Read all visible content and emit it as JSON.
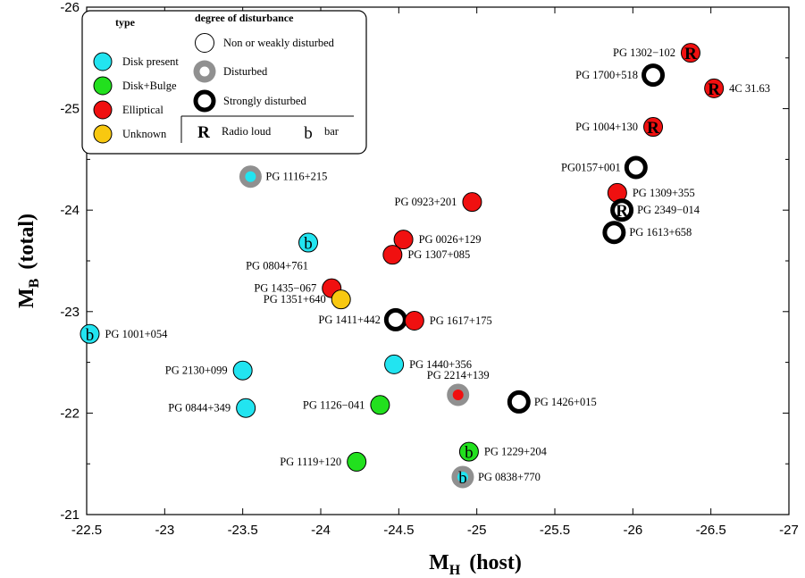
{
  "chart_data": {
    "type": "scatter",
    "xlabel": "M",
    "xlabel_sub": "H",
    "xlabel_tail": "(host)",
    "ylabel": "M",
    "ylabel_sub": "B",
    "ylabel_tail": "(total)",
    "xlim": [
      -22.5,
      -27
    ],
    "ylim": [
      -21,
      -26
    ],
    "x_ticks": [
      -22.5,
      -23,
      -23.5,
      -24,
      -24.5,
      -25,
      -25.5,
      -26,
      -26.5,
      -27
    ],
    "x_tick_labels": [
      "-22.5",
      "-23",
      "-23.5",
      "-24",
      "-24.5",
      "-25",
      "-25.5",
      "-26",
      "-26.5",
      "-27"
    ],
    "y_ticks": [
      -21,
      -22,
      -23,
      -24,
      -25,
      -26
    ],
    "y_tick_labels": [
      "-21",
      "-22",
      "-23",
      "-24",
      "-25",
      "-26"
    ],
    "grid": false,
    "colors": {
      "Disk present": "#22e4f0",
      "Disk+Bulge": "#22e01e",
      "Elliptical": "#f01010",
      "Unknown": "#f8c810",
      "Disturbed": "#909090",
      "Strongly disturbed": "#000000"
    },
    "legend": {
      "position": "top-left",
      "type_title": "type",
      "type_items": [
        "Disk present",
        "Disk+Bulge",
        "Elliptical",
        "Unknown"
      ],
      "disturbance_title": "degree of disturbance",
      "disturbance_items": [
        "Non or weakly disturbed",
        "Disturbed",
        "Strongly disturbed"
      ],
      "radio_symbol": "R",
      "radio_label": "Radio loud",
      "bar_symbol": "b",
      "bar_label": "bar"
    },
    "points": [
      {
        "name": "PG 1302−102",
        "x": -26.37,
        "y": -25.55,
        "type": "Elliptical",
        "disturbance": "none",
        "radio": true,
        "bar": false,
        "label_side": "left"
      },
      {
        "name": "PG 1700+518",
        "x": -26.13,
        "y": -25.33,
        "type": "Unknown",
        "disturbance": "strong",
        "radio": false,
        "bar": false,
        "label_side": "left"
      },
      {
        "name": "4C 31.63",
        "x": -26.52,
        "y": -25.2,
        "type": "Elliptical",
        "disturbance": "none",
        "radio": true,
        "bar": false,
        "label_side": "right"
      },
      {
        "name": "PG 1004+130",
        "x": -26.13,
        "y": -24.82,
        "type": "Elliptical",
        "disturbance": "none",
        "radio": true,
        "bar": false,
        "label_side": "left"
      },
      {
        "name": "PG0157+001",
        "x": -26.02,
        "y": -24.42,
        "type": "Unknown",
        "disturbance": "strong",
        "radio": false,
        "bar": false,
        "label_side": "left"
      },
      {
        "name": "PG 1309+355",
        "x": -25.9,
        "y": -24.17,
        "type": "Elliptical",
        "disturbance": "none",
        "radio": false,
        "bar": false,
        "label_side": "right"
      },
      {
        "name": "PG 2349−014",
        "x": -25.93,
        "y": -24.0,
        "type": "Unknown",
        "disturbance": "strong",
        "radio": true,
        "bar": false,
        "label_side": "right"
      },
      {
        "name": "PG 1613+658",
        "x": -25.88,
        "y": -23.78,
        "type": "Unknown",
        "disturbance": "strong",
        "radio": false,
        "bar": false,
        "label_side": "right"
      },
      {
        "name": "PG 1116+215",
        "x": -23.55,
        "y": -24.33,
        "type": "Disk present",
        "disturbance": "disturbed",
        "radio": false,
        "bar": false,
        "label_side": "right"
      },
      {
        "name": "PG 0923+201",
        "x": -24.97,
        "y": -24.08,
        "type": "Elliptical",
        "disturbance": "none",
        "radio": false,
        "bar": false,
        "label_side": "left"
      },
      {
        "name": "PG 0026+129",
        "x": -24.53,
        "y": -23.71,
        "type": "Elliptical",
        "disturbance": "none",
        "radio": false,
        "bar": false,
        "label_side": "right"
      },
      {
        "name": "PG 0804+761",
        "x": -23.92,
        "y": -23.68,
        "type": "Disk present",
        "disturbance": "none",
        "radio": false,
        "bar": true,
        "label_side": "below"
      },
      {
        "name": "PG 1307+085",
        "x": -24.46,
        "y": -23.56,
        "type": "Elliptical",
        "disturbance": "none",
        "radio": false,
        "bar": false,
        "label_side": "right"
      },
      {
        "name": "PG 1435−067",
        "x": -24.07,
        "y": -23.23,
        "type": "Elliptical",
        "disturbance": "none",
        "radio": false,
        "bar": false,
        "label_side": "left"
      },
      {
        "name": "PG 1351+640",
        "x": -24.13,
        "y": -23.12,
        "type": "Unknown",
        "disturbance": "none",
        "radio": false,
        "bar": false,
        "label_side": "left"
      },
      {
        "name": "PG 1411+442",
        "x": -24.48,
        "y": -22.92,
        "type": "Unknown",
        "disturbance": "strong",
        "radio": false,
        "bar": false,
        "label_side": "left"
      },
      {
        "name": "PG 1617+175",
        "x": -24.6,
        "y": -22.91,
        "type": "Elliptical",
        "disturbance": "none",
        "radio": false,
        "bar": false,
        "label_side": "right"
      },
      {
        "name": "PG 1001+054",
        "x": -22.52,
        "y": -22.78,
        "type": "Disk present",
        "disturbance": "none",
        "radio": false,
        "bar": true,
        "label_side": "right"
      },
      {
        "name": "PG 2130+099",
        "x": -23.5,
        "y": -22.42,
        "type": "Disk present",
        "disturbance": "none",
        "radio": false,
        "bar": false,
        "label_side": "left"
      },
      {
        "name": "PG 1440+356",
        "x": -24.47,
        "y": -22.48,
        "type": "Disk present",
        "disturbance": "none",
        "radio": false,
        "bar": false,
        "label_side": "right"
      },
      {
        "name": "PG 2214+139",
        "x": -24.88,
        "y": -22.18,
        "type": "Elliptical",
        "disturbance": "disturbed",
        "radio": false,
        "bar": false,
        "label_side": "above"
      },
      {
        "name": "PG 1426+015",
        "x": -25.27,
        "y": -22.11,
        "type": "Unknown",
        "disturbance": "strong",
        "radio": false,
        "bar": false,
        "label_side": "right"
      },
      {
        "name": "PG 1126−041",
        "x": -24.38,
        "y": -22.08,
        "type": "Disk+Bulge",
        "disturbance": "none",
        "radio": false,
        "bar": false,
        "label_side": "left"
      },
      {
        "name": "PG 0844+349",
        "x": -23.52,
        "y": -22.05,
        "type": "Disk present",
        "disturbance": "none",
        "radio": false,
        "bar": false,
        "label_side": "left"
      },
      {
        "name": "PG 1229+204",
        "x": -24.95,
        "y": -21.62,
        "type": "Disk+Bulge",
        "disturbance": "none",
        "radio": false,
        "bar": true,
        "label_side": "right"
      },
      {
        "name": "PG 1119+120",
        "x": -24.23,
        "y": -21.52,
        "type": "Disk+Bulge",
        "disturbance": "none",
        "radio": false,
        "bar": false,
        "label_side": "left"
      },
      {
        "name": "PG 0838+770",
        "x": -24.91,
        "y": -21.37,
        "type": "Disk present",
        "disturbance": "disturbed",
        "radio": false,
        "bar": true,
        "label_side": "right"
      }
    ]
  }
}
